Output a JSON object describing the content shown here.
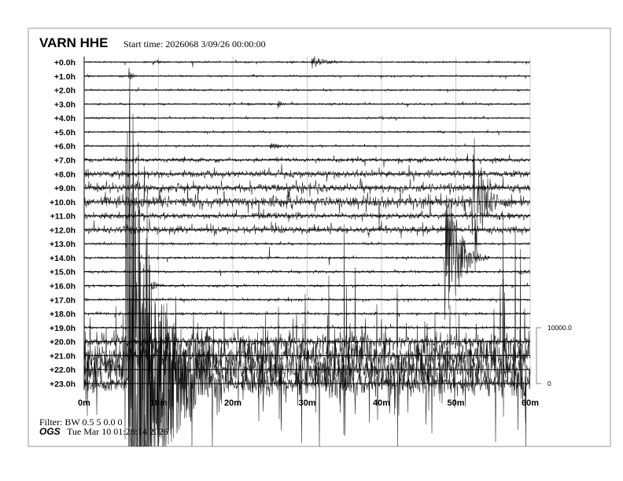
{
  "header": {
    "station": "VARN HHE",
    "start_time": "Start time: 2026068  3/09/26 00:00:00"
  },
  "footer": {
    "filter": "Filter: BW 0.5 5 0.0 0",
    "org": "OGS",
    "timestamp": "Tue Mar 10 01:28:14 2026"
  },
  "chart_data": {
    "type": "line",
    "row_labels": [
      "+0.0h",
      "+1.0h",
      "+2.0h",
      "+3.0h",
      "+4.0h",
      "+5.0h",
      "+6.0h",
      "+7.0h",
      "+8.0h",
      "+9.0h",
      "+10.0h",
      "+11.0h",
      "+12.0h",
      "+13.0h",
      "+14.0h",
      "+15.0h",
      "+16.0h",
      "+17.0h",
      "+18.0h",
      "+19.0h",
      "+20.0h",
      "+21.0h",
      "+22.0h",
      "+23.0h"
    ],
    "x_ticks": [
      0,
      10,
      20,
      30,
      40,
      50,
      60
    ],
    "x_tick_labels": [
      "0m",
      "10m",
      "20m",
      "30m",
      "40m",
      "50m",
      "60m"
    ],
    "xlim": [
      0,
      60
    ],
    "scale": {
      "max_label": "10000.0",
      "min_label": "0",
      "max": 10000,
      "min": 0
    },
    "grid": true,
    "trace_color": "#000000",
    "grid_color": "#cccccc",
    "noise_levels": [
      60,
      60,
      60,
      60,
      60,
      60,
      60,
      150,
      250,
      300,
      400,
      200,
      250,
      80,
      80,
      80,
      80,
      80,
      80,
      80,
      300,
      600,
      900,
      500
    ],
    "events": [
      {
        "row": 0,
        "minute": 9.2,
        "amplitude": 700,
        "duration": 0.3
      },
      {
        "row": 0,
        "minute": 9.8,
        "amplitude": 1200,
        "duration": 0.2
      },
      {
        "row": 0,
        "minute": 30.6,
        "amplitude": 1400,
        "duration": 1.5
      },
      {
        "row": 1,
        "minute": 6.0,
        "amplitude": 3000,
        "duration": 0.3
      },
      {
        "row": 3,
        "minute": 19.5,
        "amplitude": 500,
        "duration": 0.3
      },
      {
        "row": 3,
        "minute": 22.0,
        "amplitude": 300,
        "duration": 0.5
      },
      {
        "row": 3,
        "minute": 26.0,
        "amplitude": 1100,
        "duration": 0.4
      },
      {
        "row": 5,
        "minute": 10.0,
        "amplitude": 500,
        "duration": 0.3
      },
      {
        "row": 6,
        "minute": 25.0,
        "amplitude": 700,
        "duration": 1.5
      },
      {
        "row": 7,
        "minute": 45.0,
        "amplitude": 400,
        "duration": 3
      },
      {
        "row": 7,
        "minute": 50.0,
        "amplitude": 300,
        "duration": 2
      },
      {
        "row": 7,
        "minute": 55.0,
        "amplitude": 300,
        "duration": 4
      },
      {
        "row": 10,
        "minute": 52.2,
        "amplitude": 19000,
        "duration": 1.2
      },
      {
        "row": 11,
        "minute": 2.0,
        "amplitude": 700,
        "duration": 3
      },
      {
        "row": 11,
        "minute": 24.0,
        "amplitude": 500,
        "duration": 4
      },
      {
        "row": 11,
        "minute": 57.0,
        "amplitude": 500,
        "duration": 3
      },
      {
        "row": 12,
        "minute": 5.0,
        "amplitude": 600,
        "duration": 5
      },
      {
        "row": 12,
        "minute": 16.5,
        "amplitude": 800,
        "duration": 0.8
      },
      {
        "row": 14,
        "minute": 48.5,
        "amplitude": 20000,
        "duration": 1.5
      },
      {
        "row": 15,
        "minute": 58.5,
        "amplitude": 600,
        "duration": 1.5
      },
      {
        "row": 16,
        "minute": 9.0,
        "amplitude": 1200,
        "duration": 0.8
      },
      {
        "row": 17,
        "minute": 13.0,
        "amplitude": 250,
        "duration": 0.5
      },
      {
        "row": 18,
        "minute": 13.0,
        "amplitude": 350,
        "duration": 0.5
      },
      {
        "row": 19,
        "minute": 16.0,
        "amplitude": 500,
        "duration": 0.3
      },
      {
        "row": 21,
        "minute": 54.0,
        "amplitude": 1500,
        "duration": 6
      },
      {
        "row": 22,
        "minute": 5.5,
        "amplitude": 60000,
        "duration": 3
      },
      {
        "row": 23,
        "minute": 6.0,
        "amplitude": 60000,
        "duration": 3.5
      }
    ]
  }
}
